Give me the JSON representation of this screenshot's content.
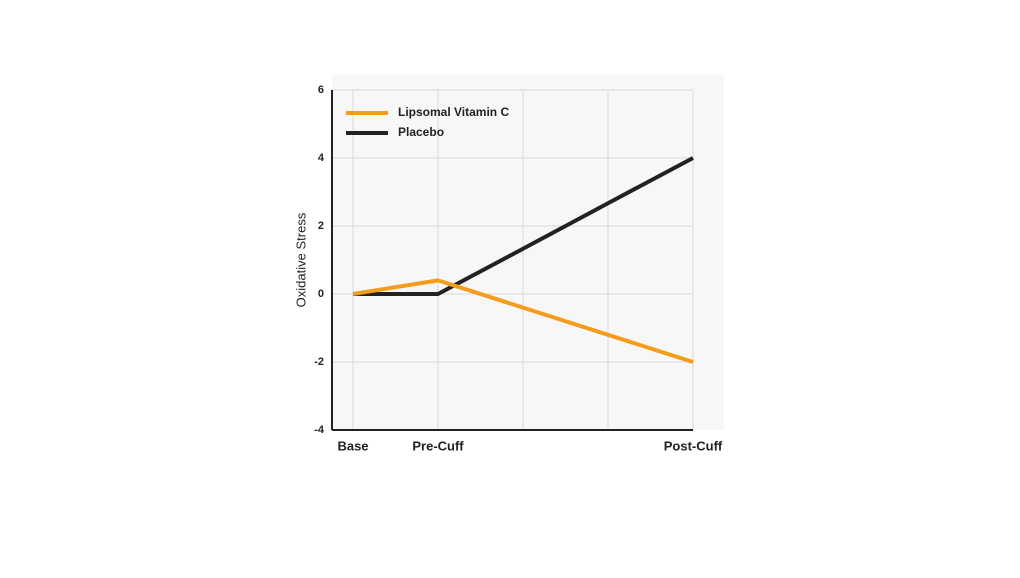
{
  "chart_data": {
    "type": "line",
    "y_label": "Oxidative Stress",
    "categories": [
      "Base",
      "Pre-Cuff",
      null,
      null,
      "Post-Cuff"
    ],
    "series": [
      {
        "name": "Lipsomal Vitamin C",
        "color": "#f49d1c",
        "values": [
          0,
          0.4,
          -0.4,
          -1.2,
          -2
        ]
      },
      {
        "name": "Placebo",
        "color": "#222222",
        "values": [
          0,
          0,
          1.33,
          2.67,
          4
        ]
      }
    ],
    "ylim": [
      -4,
      6
    ],
    "yticks": [
      -4,
      -2,
      0,
      2,
      4,
      6
    ],
    "grid": true,
    "legend": "top-left"
  }
}
